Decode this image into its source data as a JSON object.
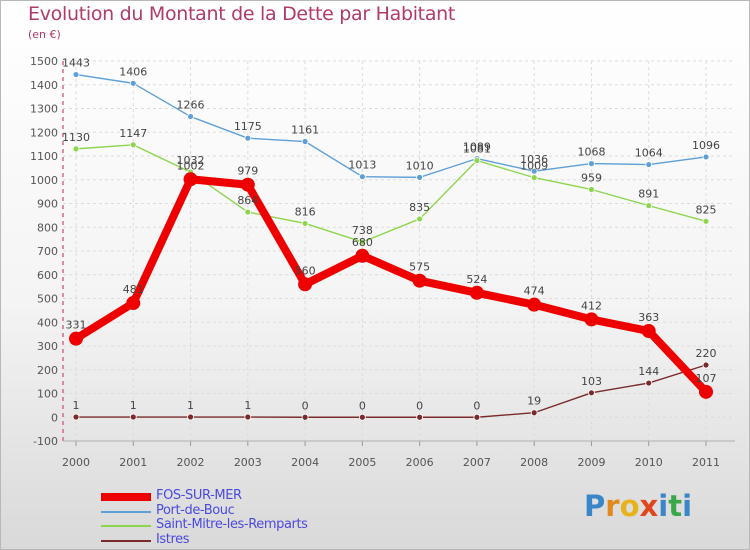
{
  "header": {
    "title": "Evolution du Montant de la Dette par Habitant",
    "unit": "(en €)"
  },
  "chart_data": {
    "type": "line",
    "title": "Evolution du Montant de la Dette par Habitant",
    "subtitle": "(en €)",
    "xlabel": "",
    "ylabel": "",
    "categories": [
      "2000",
      "2001",
      "2002",
      "2003",
      "2004",
      "2005",
      "2006",
      "2007",
      "2008",
      "2009",
      "2010",
      "2011"
    ],
    "ylim": [
      -100,
      1500
    ],
    "yticks": [
      -100,
      0,
      100,
      200,
      300,
      400,
      500,
      600,
      700,
      800,
      900,
      1000,
      1100,
      1200,
      1300,
      1400,
      1500
    ],
    "grid": true,
    "legend_position": "bottom-left",
    "series": [
      {
        "name": "FOS-SUR-MER",
        "color": "#ee0000",
        "values": [
          331,
          481,
          1002,
          979,
          560,
          680,
          575,
          524,
          474,
          412,
          363,
          107
        ]
      },
      {
        "name": "Port-de-Bouc",
        "color": "#5e9fd6",
        "values": [
          1443,
          1406,
          1266,
          1175,
          1161,
          1013,
          1010,
          1089,
          1036,
          1068,
          1064,
          1096
        ]
      },
      {
        "name": "Saint-Mitre-les-Remparts",
        "color": "#8ed54e",
        "values": [
          1130,
          1147,
          1032,
          864,
          816,
          738,
          835,
          1081,
          1009,
          959,
          891,
          825
        ]
      },
      {
        "name": "Istres",
        "color": "#7a2a2a",
        "values": [
          1,
          1,
          1,
          1,
          0,
          0,
          0,
          0,
          19,
          103,
          144,
          220
        ]
      }
    ]
  },
  "legend": {
    "items": [
      "FOS-SUR-MER",
      "Port-de-Bouc",
      "Saint-Mitre-les-Remparts",
      "Istres"
    ]
  },
  "logo": {
    "letters": [
      "P",
      "r",
      "o",
      "x",
      "i",
      "t",
      "i"
    ],
    "colors": [
      "#3a86c8",
      "#e08a1e",
      "#e8b21a",
      "#e0461e",
      "#3a86c8",
      "#3aa84a",
      "#3a86c8"
    ]
  }
}
